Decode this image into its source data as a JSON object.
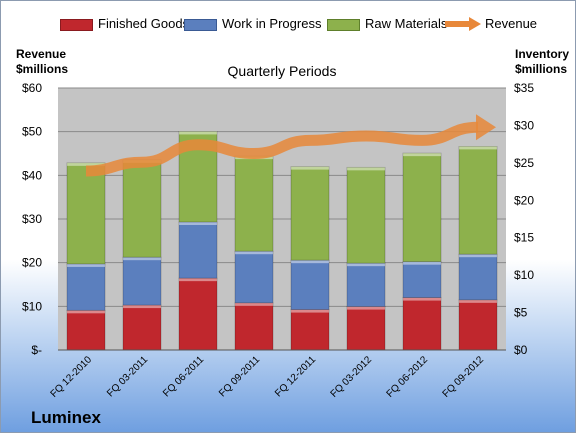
{
  "legend": {
    "finished_goods": "Finished Goods",
    "work_in_progress": "Work in Progress",
    "raw_materials": "Raw Materials",
    "revenue": "Revenue"
  },
  "left_axis_title_1": "Revenue",
  "left_axis_title_2": "$millions",
  "right_axis_title_1": "Inventory",
  "right_axis_title_2": "$millions",
  "company": "Luminex",
  "colors": {
    "finished_goods": "#c0272d",
    "work_in_progress": "#5b7fbe",
    "raw_materials": "#8db14c",
    "revenue": "#e8883a",
    "plot_bg": "#c4c4c4"
  },
  "chart_data": {
    "type": "bar",
    "stacked": true,
    "title": "Quarterly Periods",
    "categories": [
      "FQ 12-2010",
      "FQ 03-2011",
      "FQ 06-2011",
      "FQ 09-2011",
      "FQ 12-2011",
      "FQ 03-2012",
      "FQ 06-2012",
      "FQ 09-2012"
    ],
    "series": [
      {
        "name": "Finished Goods",
        "axis": "right",
        "values": [
          5.3,
          6.0,
          9.6,
          6.3,
          5.4,
          5.8,
          7.0,
          6.7
        ]
      },
      {
        "name": "Work in Progress",
        "axis": "right",
        "values": [
          6.2,
          6.4,
          7.5,
          6.9,
          6.6,
          5.8,
          4.8,
          6.1
        ]
      },
      {
        "name": "Raw Materials",
        "axis": "right",
        "values": [
          13.5,
          13.0,
          12.1,
          12.7,
          12.5,
          12.8,
          14.5,
          14.4
        ]
      },
      {
        "name": "Revenue",
        "type": "line",
        "axis": "left",
        "values": [
          41,
          43,
          47,
          45,
          48,
          49,
          48,
          51
        ]
      }
    ],
    "left_axis": {
      "ylim": [
        0,
        60
      ],
      "ticks": [
        "$-",
        "$10",
        "$20",
        "$30",
        "$40",
        "$50",
        "$60"
      ]
    },
    "right_axis": {
      "ylim": [
        0,
        35
      ],
      "ticks": [
        "$0",
        "$5",
        "$10",
        "$15",
        "$20",
        "$25",
        "$30",
        "$35"
      ]
    },
    "grid": true,
    "legend_position": "top"
  }
}
